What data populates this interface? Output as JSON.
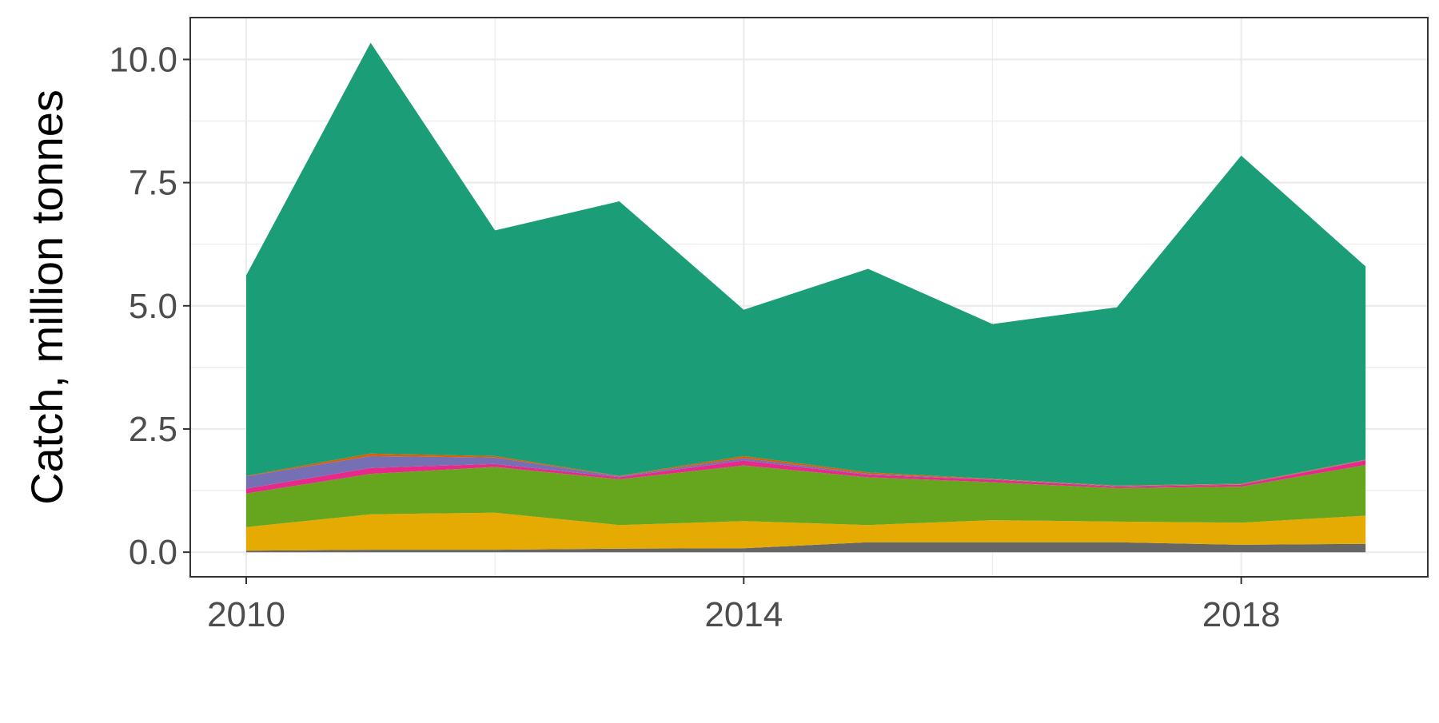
{
  "chart_data": {
    "type": "area",
    "stacked": true,
    "title": "",
    "xlabel": "",
    "ylabel": "Catch, million tonnes",
    "x": [
      2010,
      2011,
      2012,
      2013,
      2014,
      2015,
      2016,
      2017,
      2018,
      2019
    ],
    "xlim": [
      2009.55,
      2019.5
    ],
    "ylim": [
      -0.5,
      10.85
    ],
    "x_ticks": [
      2010,
      2014,
      2018
    ],
    "x_tick_labels": [
      "2010",
      "2014",
      "2018"
    ],
    "y_ticks": [
      0,
      2.5,
      5,
      7.5,
      10
    ],
    "y_tick_labels": [
      "0.0",
      "2.5",
      "5.0",
      "7.5",
      "10.0"
    ],
    "grid": true,
    "legend": "none",
    "series": [
      {
        "color": "#666666",
        "values": [
          0.03,
          0.05,
          0.05,
          0.07,
          0.08,
          0.2,
          0.2,
          0.2,
          0.15,
          0.17
        ]
      },
      {
        "color": "#E6AB02",
        "values": [
          0.48,
          0.72,
          0.75,
          0.48,
          0.55,
          0.35,
          0.45,
          0.42,
          0.45,
          0.57
        ]
      },
      {
        "color": "#66A61E",
        "values": [
          0.68,
          0.82,
          0.93,
          0.93,
          1.13,
          0.97,
          0.77,
          0.68,
          0.73,
          1.03
        ]
      },
      {
        "color": "#E7298A",
        "values": [
          0.1,
          0.12,
          0.06,
          0.04,
          0.1,
          0.05,
          0.05,
          0.03,
          0.04,
          0.09
        ]
      },
      {
        "color": "#7570B3",
        "values": [
          0.25,
          0.24,
          0.13,
          0.02,
          0.05,
          0.02,
          0.01,
          0.01,
          0.01,
          0.01
        ]
      },
      {
        "color": "#D95F02",
        "values": [
          0.01,
          0.05,
          0.03,
          0.01,
          0.04,
          0.03,
          0.01,
          0.01,
          0.01,
          0.01
        ]
      },
      {
        "color": "#1B9E77",
        "values": [
          4.07,
          8.34,
          4.58,
          5.57,
          2.97,
          4.13,
          3.14,
          3.62,
          6.66,
          3.92
        ]
      }
    ]
  }
}
